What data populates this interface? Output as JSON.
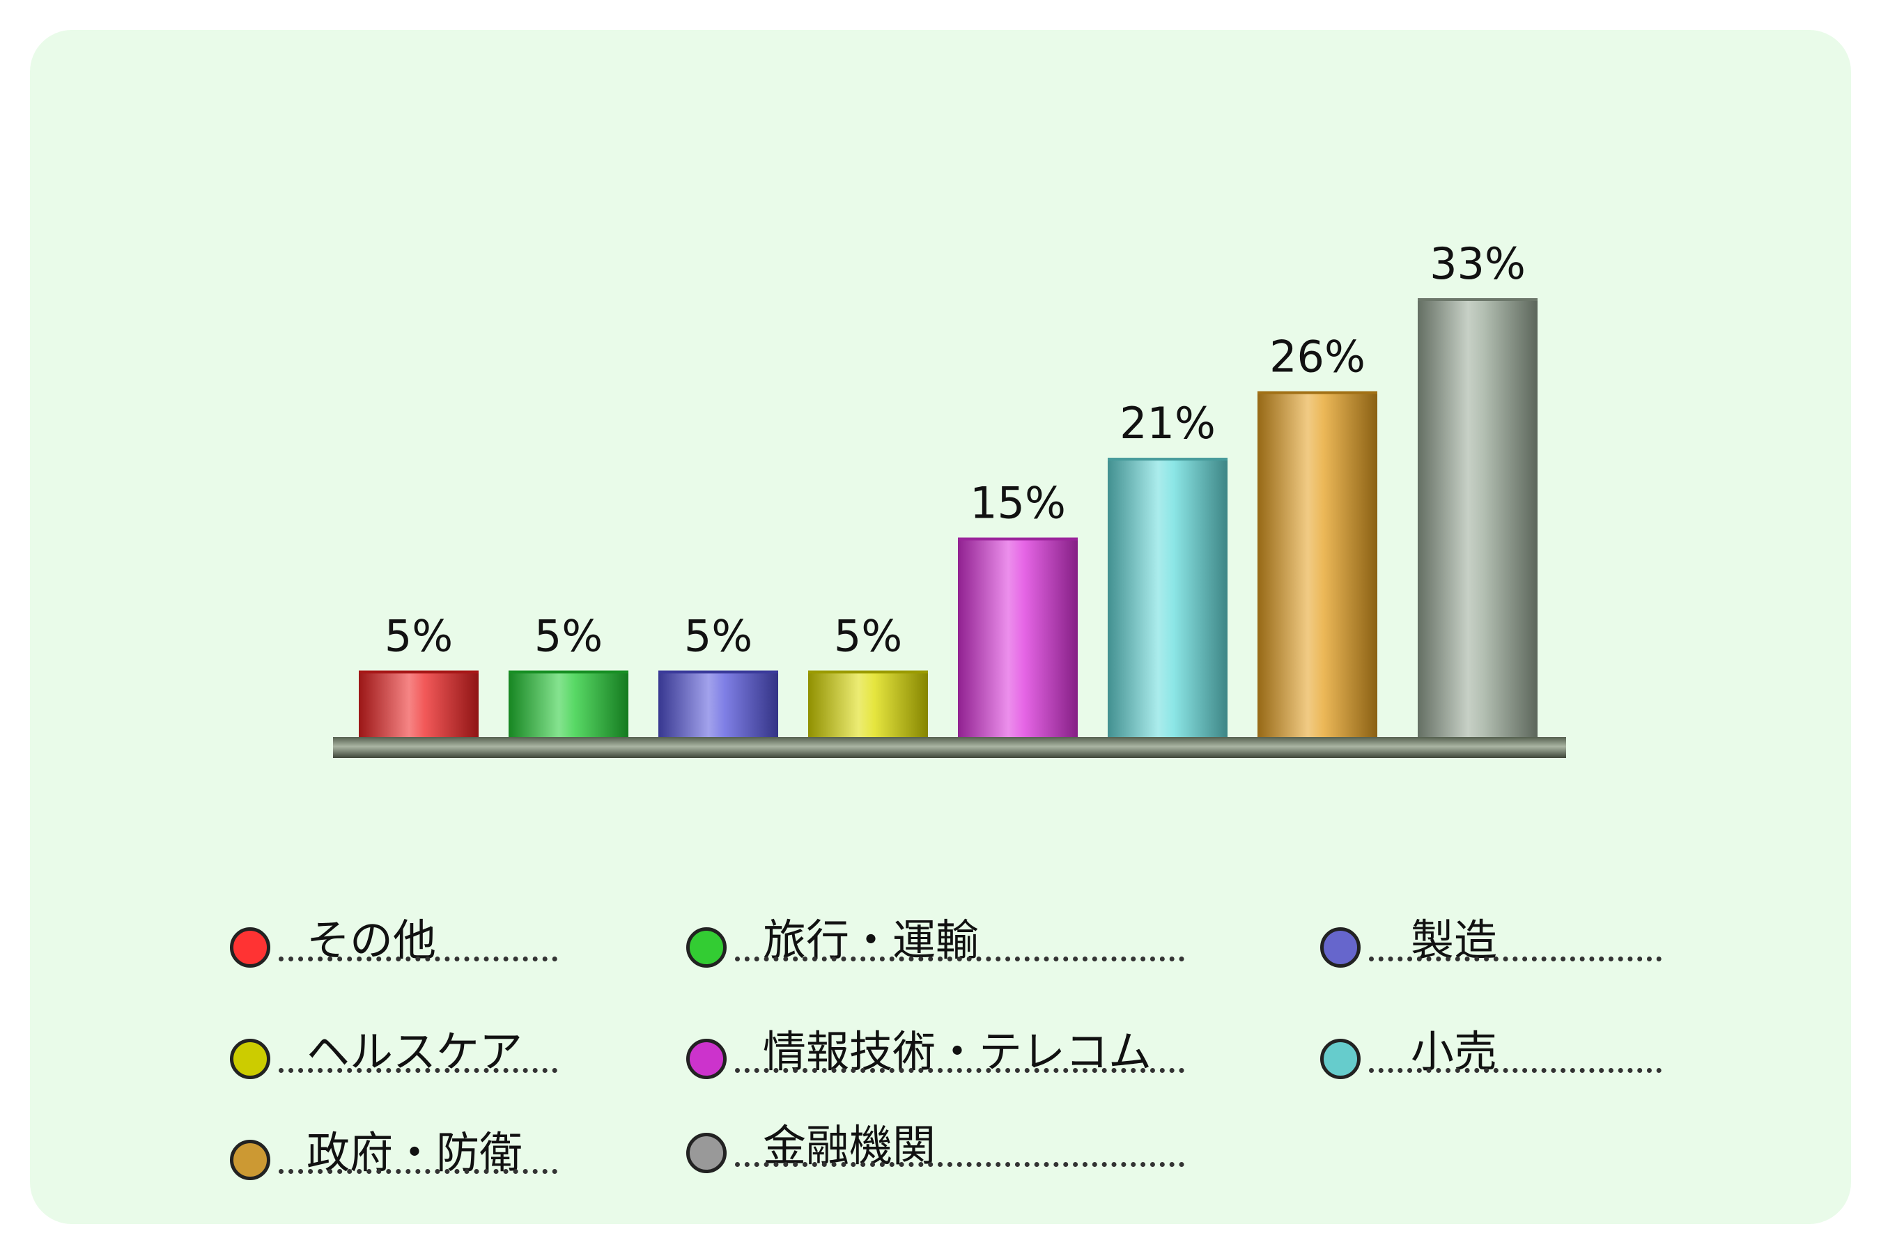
{
  "chart_data": {
    "type": "bar",
    "categories": [
      "その他",
      "旅行・運輸",
      "製造",
      "ヘルスケア",
      "情報技術・テレコム",
      "小売",
      "政府・防衛",
      "金融機関"
    ],
    "values": [
      5,
      5,
      5,
      5,
      15,
      21,
      26,
      33
    ],
    "value_labels": [
      "5%",
      "5%",
      "5%",
      "5%",
      "15%",
      "21%",
      "26%",
      "33%"
    ],
    "colors": [
      "#ee2222",
      "#22cc33",
      "#5555dd",
      "#dddd00",
      "#dd33dd",
      "#66dddd",
      "#e6a020",
      "#9aaa98"
    ],
    "ylim": [
      0,
      35
    ],
    "grid": false,
    "legend_placement": "bottom"
  },
  "legend": [
    {
      "label": "その他",
      "color": "#ff3333"
    },
    {
      "label": "旅行・運輸",
      "color": "#33cc33"
    },
    {
      "label": "製造",
      "color": "#6666cc"
    },
    {
      "label": "ヘルスケア",
      "color": "#cccc00"
    },
    {
      "label": "情報技術・テレコム",
      "color": "#cc33cc"
    },
    {
      "label": "小売",
      "color": "#66cccc"
    },
    {
      "label": "政府・防衛",
      "color": "#cc9933"
    },
    {
      "label": "金融機関",
      "color": "#999999"
    }
  ]
}
